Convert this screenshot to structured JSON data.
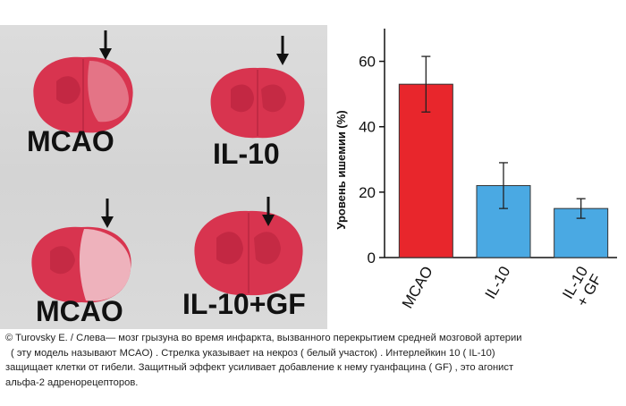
{
  "photo_labels": {
    "top_left": "MCAO",
    "top_right": "IL-10",
    "bottom_left": "MCAO",
    "bottom_right": "IL-10+GF"
  },
  "colors": {
    "tissue": "#d8344f",
    "tissue_dark": "#b21f3a",
    "necrosis": "#f2c9cf",
    "bar_mcao": "#e8262c",
    "bar_il10": "#4aa9e3"
  },
  "chart_data": {
    "type": "bar",
    "categories": [
      "MCAO",
      "IL-10",
      "IL-10\n+ GF"
    ],
    "category_lines": [
      [
        "MCAO"
      ],
      [
        "IL-10"
      ],
      [
        "IL-10",
        "+ GF"
      ]
    ],
    "values": [
      53,
      22,
      15
    ],
    "errors": [
      8.5,
      7,
      3
    ],
    "bar_colors": [
      "#e8262c",
      "#4aa9e3",
      "#4aa9e3"
    ],
    "ylabel": "Уровень ишемии (%)",
    "ylim": [
      0,
      70
    ],
    "yticks": [
      0,
      20,
      40,
      60
    ],
    "grid": false
  },
  "caption": {
    "line1": "© Turovsky E. / Слева— мозг грызуна во время инфаркта, вызванного перекрытием средней мозговой артерии",
    "line2": "( эту модель называют MCAO) . Стрелка указывает на некроз ( белый участок) . Интерлейкин 10 ( IL-10)",
    "line3": "защищает клетки от гибели. Защитный эффект усиливает добавление к нему гуанфацина ( GF) , это агонист",
    "line4": "альфа-2 адренорецепторов."
  }
}
